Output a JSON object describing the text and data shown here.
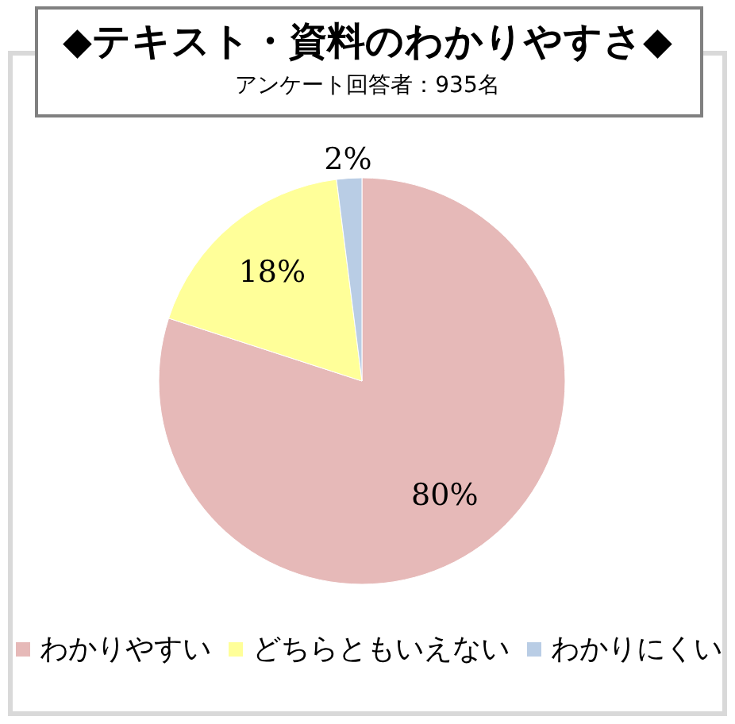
{
  "chart_data": {
    "type": "pie",
    "title": "◆テキスト・資料のわかりやすさ◆",
    "subtitle": "アンケート回答者：935名",
    "categories": [
      "わかりやすい",
      "どちらともいえない",
      "わかりにくい"
    ],
    "values": [
      80,
      18,
      2
    ],
    "colors": [
      "#e6b9b8",
      "#ffff99",
      "#b9cde5"
    ],
    "value_labels": [
      "80%",
      "18%",
      "2%"
    ],
    "legend": "bottom"
  }
}
